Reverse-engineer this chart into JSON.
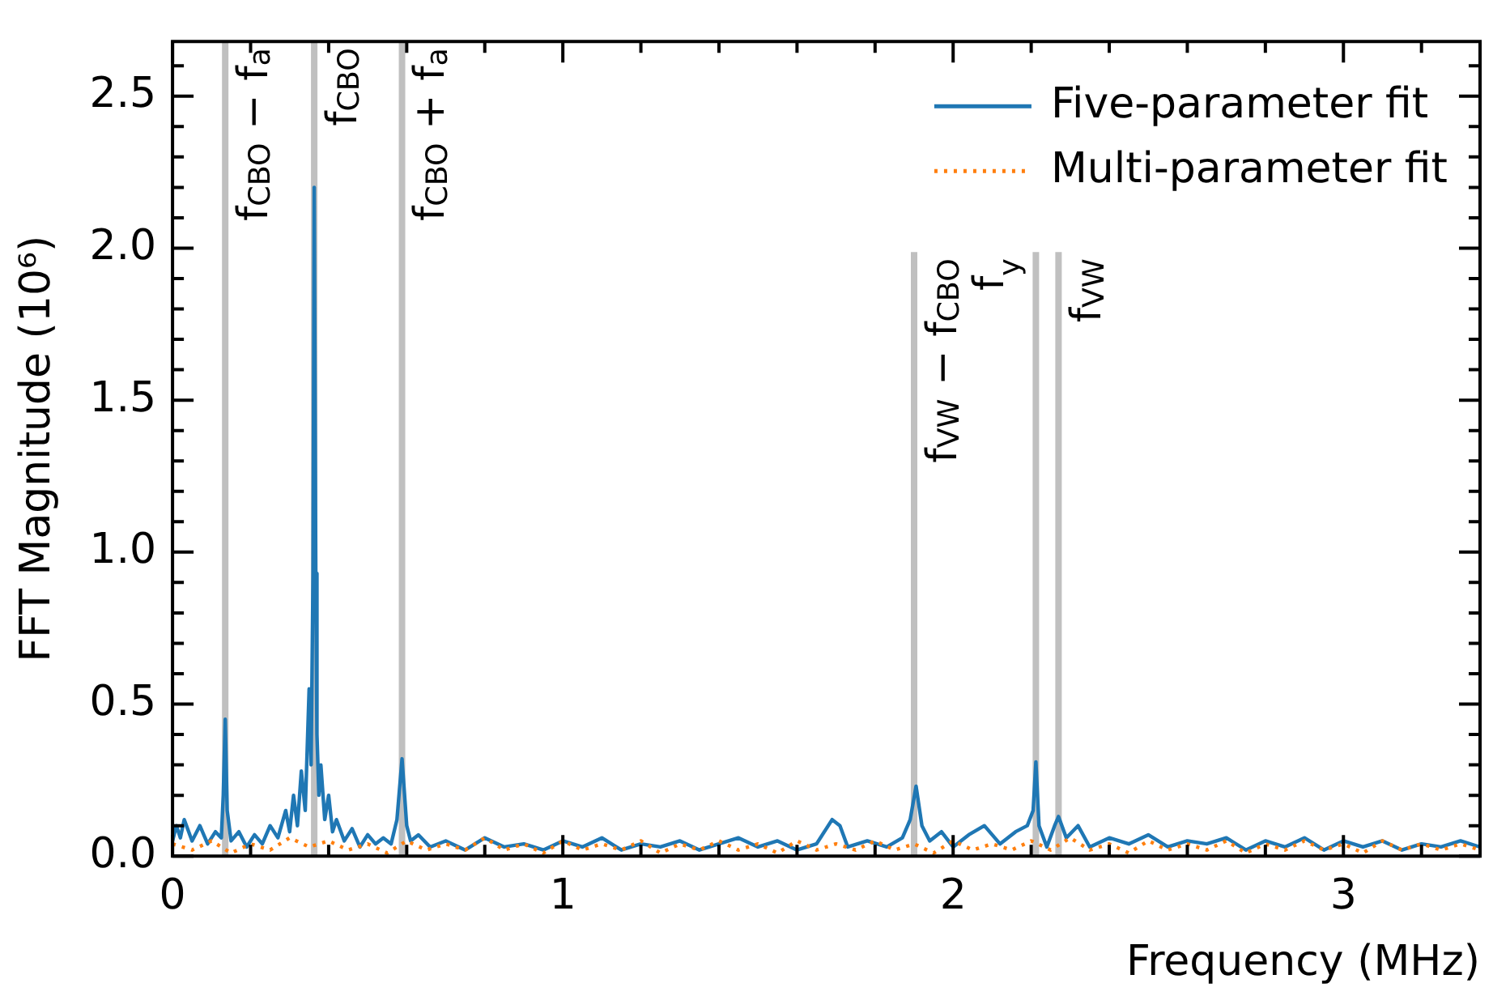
{
  "chart_data": {
    "type": "line",
    "xlabel": "Frequency (MHz)",
    "ylabel": "FFT Magnitude (10⁶)",
    "xlim": [
      0,
      3.35
    ],
    "ylim": [
      0,
      2.68
    ],
    "xticks": [
      0,
      {
        "value": 0.2,
        "label": null
      },
      {
        "value": 0.4,
        "label": null
      },
      {
        "value": 0.6,
        "label": null
      },
      {
        "value": 0.8,
        "label": null
      },
      1,
      {
        "value": 1.2,
        "label": null
      },
      {
        "value": 1.4,
        "label": null
      },
      {
        "value": 1.6,
        "label": null
      },
      {
        "value": 1.8,
        "label": null
      },
      2,
      {
        "value": 2.2,
        "label": null
      },
      {
        "value": 2.4,
        "label": null
      },
      {
        "value": 2.6,
        "label": null
      },
      {
        "value": 2.8,
        "label": null
      },
      3,
      {
        "value": 3.2,
        "label": null
      }
    ],
    "yticks": [
      "0.0",
      {
        "value": 0.1,
        "label": null
      },
      {
        "value": 0.2,
        "label": null
      },
      {
        "value": 0.3,
        "label": null
      },
      {
        "value": 0.4,
        "label": null
      },
      {
        "value": 0.5,
        "label": "0.5"
      },
      {
        "value": 0.6,
        "label": null
      },
      {
        "value": 0.7,
        "label": null
      },
      {
        "value": 0.8,
        "label": null
      },
      {
        "value": 0.9,
        "label": null
      },
      {
        "value": 1.0,
        "label": "1.0"
      },
      {
        "value": 1.1,
        "label": null
      },
      {
        "value": 1.2,
        "label": null
      },
      {
        "value": 1.3,
        "label": null
      },
      {
        "value": 1.4,
        "label": null
      },
      {
        "value": 1.5,
        "label": "1.5"
      },
      {
        "value": 1.6,
        "label": null
      },
      {
        "value": 1.7,
        "label": null
      },
      {
        "value": 1.8,
        "label": null
      },
      {
        "value": 1.9,
        "label": null
      },
      {
        "value": 2.0,
        "label": "2.0"
      },
      {
        "value": 2.1,
        "label": null
      },
      {
        "value": 2.2,
        "label": null
      },
      {
        "value": 2.3,
        "label": null
      },
      {
        "value": 2.4,
        "label": null
      },
      {
        "value": 2.5,
        "label": "2.5"
      },
      {
        "value": 2.6,
        "label": null
      }
    ],
    "legend": "top right",
    "marker": "none",
    "grid": false,
    "ref_lines": [
      {
        "axis": "x",
        "value": 0.135,
        "label": "f$_{CBO}$ − f$_{a}$",
        "color": "#c0c0c0"
      },
      {
        "axis": "x",
        "value": 0.363,
        "label": "f$_{CBO}$",
        "color": "#c0c0c0"
      },
      {
        "axis": "x",
        "value": 0.588,
        "label": "f$_{CBO}$ + f$_{a}$",
        "color": "#c0c0c0"
      },
      {
        "axis": "x",
        "value": 1.9,
        "label": "f$_{VW}$ − f$_{CBO}$",
        "color": "#c0c0c0"
      },
      {
        "axis": "x",
        "value": 2.212,
        "label": "f$_{y}$",
        "color": "#c0c0c0"
      },
      {
        "axis": "x",
        "value": 2.27,
        "label": "f$_{VW}$",
        "color": "#c0c0c0"
      }
    ],
    "series": [
      {
        "name": "Five-parameter fit",
        "color": "#1f77b4",
        "line_style": "solid",
        "x": [
          0,
          0.01,
          0.02,
          0.03,
          0.05,
          0.07,
          0.09,
          0.11,
          0.125,
          0.13,
          0.135,
          0.14,
          0.15,
          0.17,
          0.19,
          0.21,
          0.23,
          0.25,
          0.27,
          0.29,
          0.3,
          0.31,
          0.32,
          0.33,
          0.34,
          0.35,
          0.355,
          0.36,
          0.363,
          0.367,
          0.37,
          0.375,
          0.38,
          0.39,
          0.4,
          0.41,
          0.42,
          0.44,
          0.46,
          0.48,
          0.5,
          0.52,
          0.54,
          0.56,
          0.575,
          0.588,
          0.6,
          0.61,
          0.63,
          0.66,
          0.7,
          0.75,
          0.8,
          0.85,
          0.9,
          0.95,
          1.0,
          1.05,
          1.1,
          1.15,
          1.2,
          1.25,
          1.3,
          1.35,
          1.4,
          1.45,
          1.5,
          1.55,
          1.6,
          1.65,
          1.69,
          1.71,
          1.73,
          1.78,
          1.83,
          1.87,
          1.89,
          1.905,
          1.92,
          1.94,
          1.97,
          2.0,
          2.04,
          2.08,
          2.12,
          2.16,
          2.19,
          2.205,
          2.212,
          2.22,
          2.24,
          2.26,
          2.27,
          2.29,
          2.32,
          2.35,
          2.4,
          2.45,
          2.5,
          2.55,
          2.6,
          2.65,
          2.7,
          2.75,
          2.8,
          2.85,
          2.9,
          2.95,
          3.0,
          3.05,
          3.1,
          3.15,
          3.2,
          3.25,
          3.3,
          3.35
        ],
        "values": [
          0.05,
          0.1,
          0.06,
          0.12,
          0.05,
          0.1,
          0.04,
          0.08,
          0.06,
          0.2,
          0.45,
          0.15,
          0.05,
          0.08,
          0.03,
          0.07,
          0.04,
          0.1,
          0.06,
          0.15,
          0.08,
          0.2,
          0.1,
          0.28,
          0.15,
          0.55,
          0.3,
          0.93,
          2.2,
          0.93,
          0.4,
          0.2,
          0.3,
          0.12,
          0.2,
          0.08,
          0.12,
          0.05,
          0.09,
          0.03,
          0.07,
          0.04,
          0.06,
          0.04,
          0.12,
          0.32,
          0.1,
          0.05,
          0.07,
          0.03,
          0.05,
          0.02,
          0.06,
          0.03,
          0.04,
          0.02,
          0.05,
          0.03,
          0.06,
          0.02,
          0.04,
          0.03,
          0.05,
          0.02,
          0.04,
          0.06,
          0.03,
          0.05,
          0.02,
          0.04,
          0.12,
          0.1,
          0.03,
          0.05,
          0.03,
          0.06,
          0.12,
          0.23,
          0.1,
          0.05,
          0.08,
          0.03,
          0.07,
          0.1,
          0.04,
          0.08,
          0.1,
          0.15,
          0.31,
          0.1,
          0.03,
          0.1,
          0.13,
          0.06,
          0.1,
          0.03,
          0.06,
          0.04,
          0.07,
          0.03,
          0.05,
          0.04,
          0.06,
          0.02,
          0.05,
          0.03,
          0.06,
          0.02,
          0.05,
          0.03,
          0.05,
          0.02,
          0.04,
          0.03,
          0.05,
          0.03
        ]
      },
      {
        "name": "Multi-parameter fit",
        "color": "#ff7f0e",
        "line_style": "dotted",
        "x": [
          0,
          0.05,
          0.1,
          0.15,
          0.2,
          0.25,
          0.3,
          0.35,
          0.4,
          0.45,
          0.5,
          0.55,
          0.6,
          0.65,
          0.7,
          0.75,
          0.8,
          0.85,
          0.9,
          0.95,
          1.0,
          1.05,
          1.1,
          1.15,
          1.2,
          1.25,
          1.3,
          1.35,
          1.4,
          1.45,
          1.5,
          1.55,
          1.6,
          1.65,
          1.7,
          1.75,
          1.8,
          1.85,
          1.9,
          1.95,
          2.0,
          2.05,
          2.1,
          2.15,
          2.2,
          2.25,
          2.3,
          2.35,
          2.4,
          2.45,
          2.5,
          2.55,
          2.6,
          2.65,
          2.7,
          2.75,
          2.8,
          2.85,
          2.9,
          2.95,
          3.0,
          3.05,
          3.1,
          3.15,
          3.2,
          3.25,
          3.3,
          3.35
        ],
        "values": [
          0.04,
          0.02,
          0.05,
          0.01,
          0.04,
          0.02,
          0.06,
          0.03,
          0.05,
          0.02,
          0.04,
          0.01,
          0.05,
          0.02,
          0.04,
          0.02,
          0.06,
          0.02,
          0.04,
          0.01,
          0.05,
          0.02,
          0.04,
          0.02,
          0.05,
          0.01,
          0.04,
          0.02,
          0.05,
          0.02,
          0.04,
          0.01,
          0.05,
          0.02,
          0.04,
          0.02,
          0.05,
          0.02,
          0.04,
          0.01,
          0.05,
          0.02,
          0.04,
          0.02,
          0.05,
          0.02,
          0.06,
          0.02,
          0.04,
          0.01,
          0.05,
          0.02,
          0.04,
          0.02,
          0.05,
          0.01,
          0.04,
          0.02,
          0.05,
          0.02,
          0.04,
          0.01,
          0.05,
          0.02,
          0.04,
          0.02,
          0.04,
          0.02
        ]
      }
    ]
  }
}
